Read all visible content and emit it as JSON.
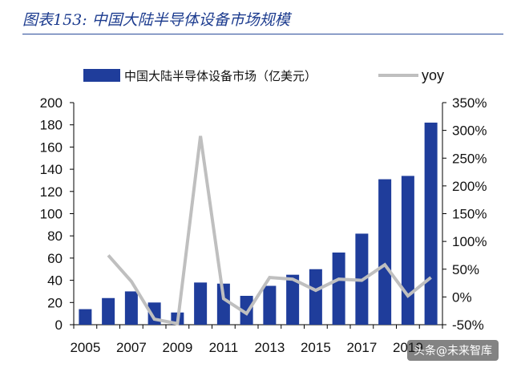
{
  "figure_title": "图表153: 中国大陆半导体设备市场规模",
  "watermark": "头条@未来智库",
  "chart_data": {
    "type": "bar",
    "x": [
      2005,
      2006,
      2007,
      2008,
      2009,
      2010,
      2011,
      2012,
      2013,
      2014,
      2015,
      2016,
      2017,
      2018,
      2019,
      2020
    ],
    "series": [
      {
        "name": "中国大陆半导体设备市场（亿美元）",
        "type": "bar",
        "axis": "left",
        "color": "#1f3d9b",
        "values": [
          14,
          24,
          30,
          20,
          11,
          38,
          37,
          26,
          35,
          45,
          50,
          65,
          82,
          131,
          134,
          182
        ]
      },
      {
        "name": "yoy",
        "type": "line",
        "axis": "right",
        "color": "#bfbfbf",
        "values": [
          null,
          75,
          28,
          -40,
          -48,
          290,
          -3,
          -30,
          35,
          32,
          12,
          32,
          30,
          58,
          2,
          35
        ]
      }
    ],
    "x_tick_labels": [
      "2005",
      "2007",
      "2009",
      "2011",
      "2013",
      "2015",
      "2017",
      "2019"
    ],
    "y_left": {
      "min": 0,
      "max": 200,
      "step": 20,
      "ticks": [
        "0",
        "20",
        "40",
        "60",
        "80",
        "100",
        "120",
        "140",
        "160",
        "180",
        "200"
      ]
    },
    "y_right": {
      "min": -50,
      "max": 350,
      "step": 50,
      "ticks": [
        "-50%",
        "0%",
        "50%",
        "100%",
        "150%",
        "200%",
        "250%",
        "300%",
        "350%"
      ]
    },
    "legend_position": "top",
    "grid": false
  }
}
